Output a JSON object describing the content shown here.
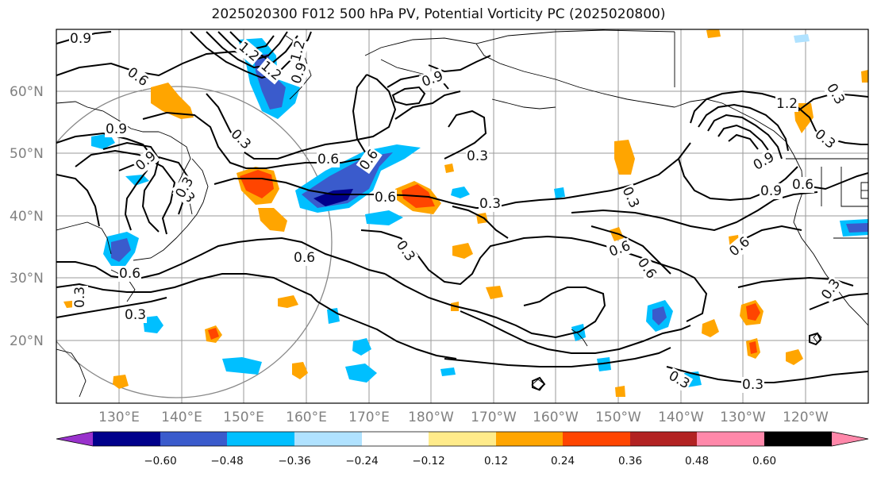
{
  "title": "2025020300 F012 500 hPa PV, Potential Vorticity PC (2025020800)",
  "lat_labels": [
    "60°N",
    "50°N",
    "40°N",
    "30°N",
    "20°N"
  ],
  "lon_labels": [
    "130°E",
    "140°E",
    "150°E",
    "160°E",
    "170°E",
    "180°W",
    "170°W",
    "160°W",
    "150°W",
    "140°W",
    "130°W",
    "120°W"
  ],
  "colorbar": {
    "ticks": [
      "−0.60",
      "−0.48",
      "−0.36",
      "−0.24",
      "−0.12",
      "0.12",
      "0.24",
      "0.36",
      "0.48",
      "0.60"
    ],
    "colors": [
      "#9932cc",
      "#00008b",
      "#3a5bcc",
      "#00bfff",
      "#b0e2ff",
      "#ffffff",
      "#ffeb8a",
      "#ffa500",
      "#ff4500",
      "#b22222",
      "#ff88aa"
    ]
  },
  "contour_labels": [
    "0.9",
    "0.6",
    "1.2",
    "1.2",
    "1.2",
    "0.9",
    "0.3",
    "0.3",
    "0.9",
    "0.9",
    "0.6",
    "0.3",
    "0.3",
    "0.6",
    "0.6",
    "0.6",
    "0.6",
    "0.3",
    "0.9",
    "1.2",
    "0.9",
    "0.6",
    "0.6",
    "0.6",
    "0.3",
    "0.3",
    "0.3",
    "0.9",
    "0.3",
    "0.6",
    "0.3",
    "0.3",
    "0.3",
    "0.3",
    "0.3"
  ]
}
